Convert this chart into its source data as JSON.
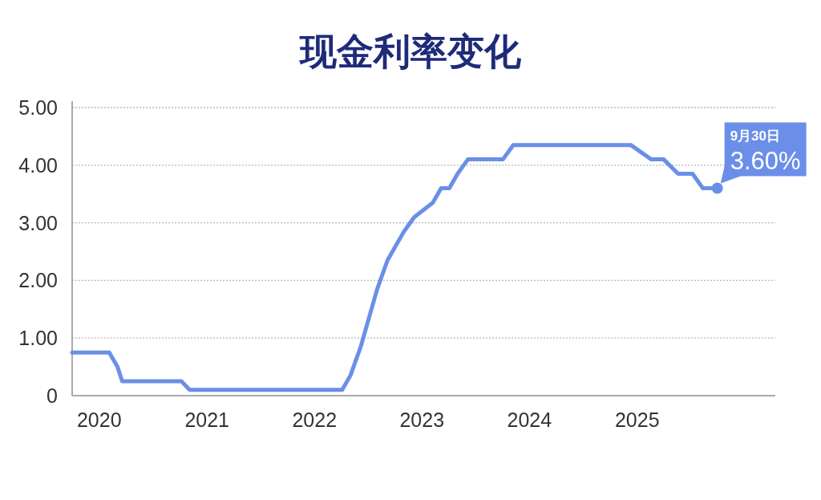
{
  "chart_data": {
    "type": "line",
    "title": "现金利率变化",
    "x": [
      "2019-10-01",
      "2020-02-04",
      "2020-03-03",
      "2020-03-19",
      "2020-10-06",
      "2020-11-03",
      "2022-04-05",
      "2022-05-03",
      "2022-06-07",
      "2022-07-05",
      "2022-08-02",
      "2022-09-06",
      "2022-10-04",
      "2022-11-01",
      "2022-12-06",
      "2023-02-07",
      "2023-03-07",
      "2023-04-04",
      "2023-05-02",
      "2023-06-06",
      "2023-10-03",
      "2023-11-07",
      "2024-12-10",
      "2025-02-18",
      "2025-04-01",
      "2025-05-20",
      "2025-07-08",
      "2025-08-12",
      "2025-09-30"
    ],
    "values": [
      0.75,
      0.75,
      0.5,
      0.25,
      0.25,
      0.1,
      0.1,
      0.35,
      0.85,
      1.35,
      1.85,
      2.35,
      2.6,
      2.85,
      3.1,
      3.35,
      3.6,
      3.6,
      3.85,
      4.1,
      4.1,
      4.35,
      4.35,
      4.1,
      4.1,
      3.85,
      3.85,
      3.6,
      3.6
    ],
    "color": "#6b8fe8",
    "xlim": [
      "2019-10-01",
      "2026-04-15"
    ],
    "xticks": [
      "2020",
      "2021",
      "2022",
      "2023",
      "2024",
      "2025"
    ],
    "ylim": [
      0,
      5
    ],
    "yticks": [
      0,
      {
        "value": 1,
        "label": "1.00"
      },
      {
        "value": 2,
        "label": "2.00"
      },
      {
        "value": 3,
        "label": "3.00"
      },
      {
        "value": 4,
        "label": "4.00"
      },
      {
        "value": 5,
        "label": "5.00"
      }
    ],
    "grid": "y",
    "annotations": [
      "9月30日",
      {
        "text": "3.60%",
        "x": "2025-09-30",
        "y": 3.6
      }
    ]
  }
}
